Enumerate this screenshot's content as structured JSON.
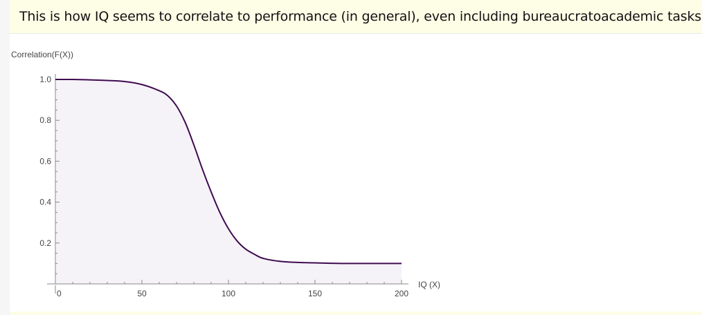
{
  "banner": {
    "text": "This is how IQ seems to correlate to performance (in general), even including  bureaucratoacademic tasks."
  },
  "chart_data": {
    "type": "area",
    "xlabel": "IQ (X)",
    "ylabel": "Correlation(F(X))",
    "xlim": [
      0,
      200
    ],
    "ylim": [
      0,
      1.0
    ],
    "x_ticks": [
      0,
      50,
      100,
      150,
      200
    ],
    "y_ticks": [
      0.2,
      0.4,
      0.6,
      0.8,
      1.0
    ],
    "x_tick_labels": [
      "0",
      "50",
      "100",
      "150",
      "200"
    ],
    "y_tick_labels": [
      "0.2",
      "0.4",
      "0.6",
      "0.8",
      "1.0"
    ],
    "series": [
      {
        "x": [
          0,
          10,
          20,
          30,
          40,
          50,
          60,
          65,
          70,
          75,
          80,
          85,
          90,
          95,
          100,
          105,
          110,
          115,
          120,
          130,
          140,
          150,
          160,
          170,
          180,
          190,
          200
        ],
        "y": [
          1.0,
          1.0,
          0.998,
          0.995,
          0.99,
          0.975,
          0.945,
          0.92,
          0.87,
          0.79,
          0.68,
          0.56,
          0.45,
          0.35,
          0.27,
          0.21,
          0.17,
          0.145,
          0.125,
          0.11,
          0.105,
          0.103,
          0.101,
          0.1,
          0.1,
          0.1,
          0.1
        ],
        "color": "#3e0a4f",
        "fill": "#f5f2f8"
      }
    ],
    "grid": false,
    "legend": "none"
  }
}
